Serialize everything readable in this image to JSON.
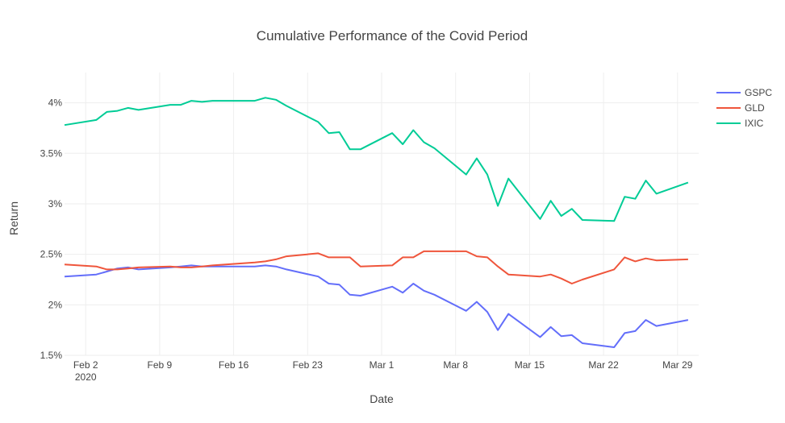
{
  "chart_data": {
    "type": "line",
    "title": "Cumulative Performance of the Covid Period",
    "xlabel": "Date",
    "ylabel": "Return",
    "x_start_date": "2020-01-31",
    "xlim": [
      "2020-01-31",
      "2020-03-31"
    ],
    "ylim": [
      1.5,
      4.3
    ],
    "yticks": [
      1.5,
      2,
      2.5,
      3,
      3.5,
      4
    ],
    "ytick_labels": [
      "1.5%",
      "2%",
      "2.5%",
      "3%",
      "3.5%",
      "4%"
    ],
    "xticks": [
      {
        "date": "2020-02-02",
        "label": "Feb 2",
        "sub": "2020"
      },
      {
        "date": "2020-02-09",
        "label": "Feb 9"
      },
      {
        "date": "2020-02-16",
        "label": "Feb 16"
      },
      {
        "date": "2020-02-23",
        "label": "Feb 23"
      },
      {
        "date": "2020-03-01",
        "label": "Mar 1"
      },
      {
        "date": "2020-03-08",
        "label": "Mar 8"
      },
      {
        "date": "2020-03-15",
        "label": "Mar 15"
      },
      {
        "date": "2020-03-22",
        "label": "Mar 22"
      },
      {
        "date": "2020-03-29",
        "label": "Mar 29"
      }
    ],
    "grid": true,
    "legend_position": "top-right",
    "dates": [
      "2020-01-31",
      "2020-02-03",
      "2020-02-04",
      "2020-02-05",
      "2020-02-06",
      "2020-02-07",
      "2020-02-10",
      "2020-02-11",
      "2020-02-12",
      "2020-02-13",
      "2020-02-14",
      "2020-02-18",
      "2020-02-19",
      "2020-02-20",
      "2020-02-21",
      "2020-02-24",
      "2020-02-25",
      "2020-02-26",
      "2020-02-27",
      "2020-02-28",
      "2020-03-02",
      "2020-03-03",
      "2020-03-04",
      "2020-03-05",
      "2020-03-06",
      "2020-03-09",
      "2020-03-10",
      "2020-03-11",
      "2020-03-12",
      "2020-03-13",
      "2020-03-16",
      "2020-03-17",
      "2020-03-18",
      "2020-03-19",
      "2020-03-20",
      "2020-03-23",
      "2020-03-24",
      "2020-03-25",
      "2020-03-26",
      "2020-03-27",
      "2020-03-30"
    ],
    "series": [
      {
        "name": "GSPC",
        "color": "#636efa",
        "values": [
          2.28,
          2.3,
          2.33,
          2.36,
          2.37,
          2.35,
          2.37,
          2.38,
          2.39,
          2.38,
          2.38,
          2.38,
          2.39,
          2.38,
          2.35,
          2.28,
          2.21,
          2.2,
          2.1,
          2.09,
          2.18,
          2.12,
          2.21,
          2.14,
          2.1,
          1.94,
          2.03,
          1.93,
          1.75,
          1.91,
          1.68,
          1.78,
          1.69,
          1.7,
          1.62,
          1.58,
          1.72,
          1.74,
          1.85,
          1.79,
          1.85
        ]
      },
      {
        "name": "GLD",
        "color": "#ef553b",
        "values": [
          2.4,
          2.38,
          2.35,
          2.35,
          2.36,
          2.37,
          2.38,
          2.37,
          2.37,
          2.38,
          2.39,
          2.42,
          2.43,
          2.45,
          2.48,
          2.51,
          2.47,
          2.47,
          2.47,
          2.38,
          2.39,
          2.47,
          2.47,
          2.53,
          2.53,
          2.53,
          2.48,
          2.47,
          2.38,
          2.3,
          2.28,
          2.3,
          2.26,
          2.21,
          2.25,
          2.35,
          2.47,
          2.43,
          2.46,
          2.44,
          2.45
        ]
      },
      {
        "name": "IXIC",
        "color": "#00cc96",
        "values": [
          3.78,
          3.83,
          3.91,
          3.92,
          3.95,
          3.93,
          3.98,
          3.98,
          4.02,
          4.01,
          4.02,
          4.02,
          4.05,
          4.03,
          3.97,
          3.81,
          3.7,
          3.71,
          3.54,
          3.54,
          3.7,
          3.59,
          3.73,
          3.61,
          3.55,
          3.29,
          3.45,
          3.29,
          2.98,
          3.25,
          2.85,
          3.03,
          2.88,
          2.95,
          2.84,
          2.83,
          3.07,
          3.05,
          3.23,
          3.1,
          3.21
        ]
      }
    ]
  }
}
